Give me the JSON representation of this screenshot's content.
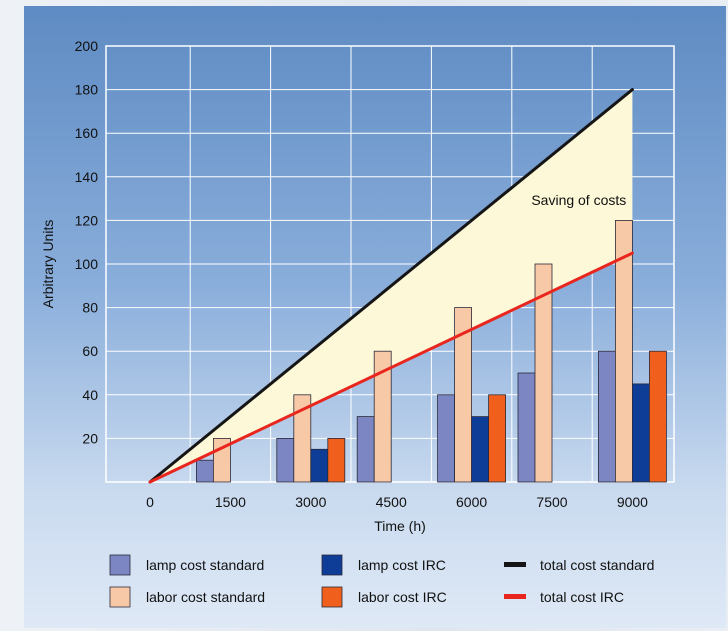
{
  "chart_data": {
    "type": "bar",
    "title": "",
    "xlabel": "Time (h)",
    "ylabel": "Arbitrary Units",
    "categories": [
      "0",
      "1500",
      "3000",
      "4500",
      "6000",
      "7500",
      "9000"
    ],
    "x": [
      0,
      1500,
      3000,
      4500,
      6000,
      7500,
      9000
    ],
    "ylim": [
      0,
      200
    ],
    "yticks": [
      20,
      40,
      60,
      80,
      100,
      120,
      140,
      160,
      180,
      200
    ],
    "grid": true,
    "legend_position": "bottom",
    "series": [
      {
        "name": "lamp cost standard",
        "kind": "bar",
        "color": "#7b86c2",
        "values": [
          null,
          10,
          20,
          30,
          40,
          50,
          60
        ]
      },
      {
        "name": "labor cost standard",
        "kind": "bar",
        "color": "#f8c9a6",
        "values": [
          null,
          20,
          40,
          60,
          80,
          100,
          120
        ]
      },
      {
        "name": "lamp cost IRC",
        "kind": "bar",
        "color": "#0e3d97",
        "values": [
          null,
          null,
          15,
          null,
          30,
          null,
          45
        ]
      },
      {
        "name": "labor cost IRC",
        "kind": "bar",
        "color": "#f0601c",
        "values": [
          null,
          null,
          20,
          null,
          40,
          null,
          60
        ]
      },
      {
        "name": "total cost standard",
        "kind": "line",
        "color": "#151515",
        "points": [
          [
            0,
            0
          ],
          [
            9000,
            180
          ]
        ]
      },
      {
        "name": "total cost IRC",
        "kind": "line",
        "color": "#e8261e",
        "points": [
          [
            0,
            0
          ],
          [
            9000,
            105
          ]
        ]
      }
    ],
    "shaded_region": {
      "between": [
        "total cost standard",
        "total cost IRC"
      ],
      "color": "#fdf8d8"
    },
    "annotations": [
      {
        "text": "Saving of costs",
        "x": 8000,
        "y": 128
      }
    ]
  }
}
